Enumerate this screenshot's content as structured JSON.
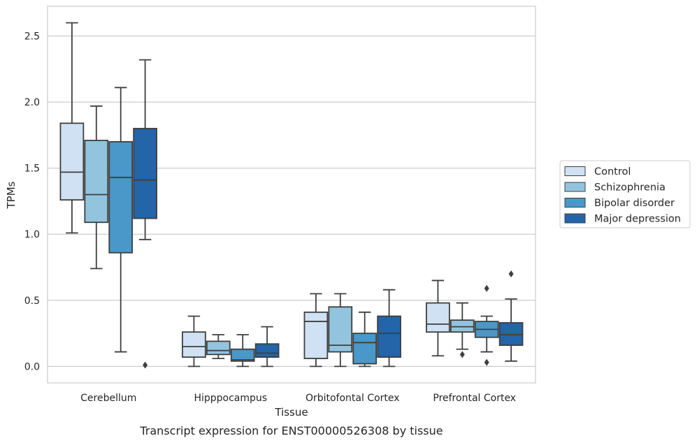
{
  "chart_data": {
    "type": "box",
    "caption": "Transcript expression for ENST00000526308 by tissue",
    "xlabel": "Tissue",
    "ylabel": "TPMs",
    "ylim": [
      -0.125,
      2.725
    ],
    "yticks": [
      0.0,
      0.5,
      1.0,
      1.5,
      2.0,
      2.5
    ],
    "ytick_labels": [
      "0.0",
      "0.5",
      "1.0",
      "1.5",
      "2.0",
      "2.5"
    ],
    "grid": "horizontal",
    "legend_position": "right",
    "categories": [
      "Cerebellum",
      "Hipppocampus",
      "Orbitofontal Cortex",
      "Prefrontal Cortex"
    ],
    "series": [
      {
        "name": "Control",
        "color": "#cfe1f2",
        "boxes": [
          {
            "whislo": 1.01,
            "q1": 1.26,
            "med": 1.47,
            "q3": 1.84,
            "whishi": 2.6,
            "fliers": []
          },
          {
            "whislo": 0.0,
            "q1": 0.07,
            "med": 0.15,
            "q3": 0.26,
            "whishi": 0.38,
            "fliers": []
          },
          {
            "whislo": 0.0,
            "q1": 0.06,
            "med": 0.34,
            "q3": 0.41,
            "whishi": 0.55,
            "fliers": []
          },
          {
            "whislo": 0.08,
            "q1": 0.26,
            "med": 0.32,
            "q3": 0.48,
            "whishi": 0.65,
            "fliers": []
          }
        ]
      },
      {
        "name": "Schizophrenia",
        "color": "#93c4de",
        "boxes": [
          {
            "whislo": 0.74,
            "q1": 1.09,
            "med": 1.3,
            "q3": 1.71,
            "whishi": 1.97,
            "fliers": []
          },
          {
            "whislo": 0.06,
            "q1": 0.09,
            "med": 0.12,
            "q3": 0.19,
            "whishi": 0.24,
            "fliers": []
          },
          {
            "whislo": 0.0,
            "q1": 0.11,
            "med": 0.16,
            "q3": 0.45,
            "whishi": 0.55,
            "fliers": []
          },
          {
            "whislo": 0.13,
            "q1": 0.26,
            "med": 0.3,
            "q3": 0.35,
            "whishi": 0.48,
            "fliers": [
              0.09
            ]
          }
        ]
      },
      {
        "name": "Bipolar disorder",
        "color": "#4a97c9",
        "boxes": [
          {
            "whislo": 0.11,
            "q1": 0.86,
            "med": 1.43,
            "q3": 1.7,
            "whishi": 2.11,
            "fliers": []
          },
          {
            "whislo": 0.0,
            "q1": 0.04,
            "med": 0.05,
            "q3": 0.13,
            "whishi": 0.24,
            "fliers": []
          },
          {
            "whislo": 0.0,
            "q1": 0.02,
            "med": 0.18,
            "q3": 0.25,
            "whishi": 0.41,
            "fliers": []
          },
          {
            "whislo": 0.11,
            "q1": 0.22,
            "med": 0.28,
            "q3": 0.34,
            "whishi": 0.38,
            "fliers": [
              0.59,
              0.03
            ]
          }
        ]
      },
      {
        "name": "Major depression",
        "color": "#2464a8",
        "boxes": [
          {
            "whislo": 0.96,
            "q1": 1.12,
            "med": 1.41,
            "q3": 1.8,
            "whishi": 2.32,
            "fliers": [
              0.01
            ]
          },
          {
            "whislo": 0.0,
            "q1": 0.07,
            "med": 0.1,
            "q3": 0.17,
            "whishi": 0.3,
            "fliers": []
          },
          {
            "whislo": 0.0,
            "q1": 0.07,
            "med": 0.25,
            "q3": 0.38,
            "whishi": 0.58,
            "fliers": []
          },
          {
            "whislo": 0.04,
            "q1": 0.16,
            "med": 0.24,
            "q3": 0.33,
            "whishi": 0.51,
            "fliers": [
              0.7
            ]
          }
        ]
      }
    ]
  }
}
